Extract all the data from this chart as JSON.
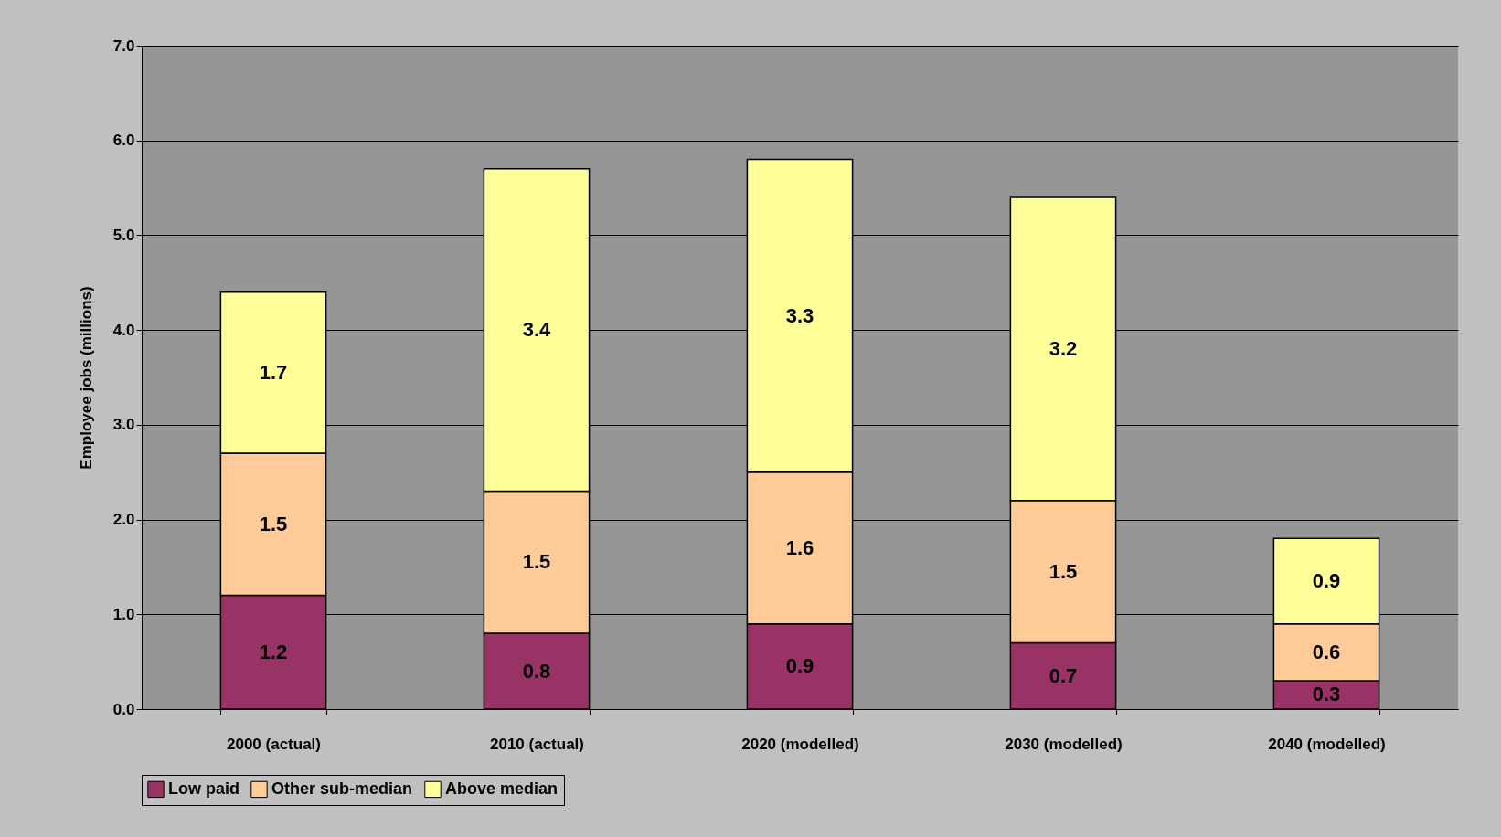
{
  "chart_data": {
    "type": "bar",
    "stacked": true,
    "ylabel": "Employee jobs (millions)",
    "categories": [
      "2000 (actual)",
      "2010 (actual)",
      "2020 (modelled)",
      "2030 (modelled)",
      "2040 (modelled)"
    ],
    "series": [
      {
        "name": "Low paid",
        "color": "#993366",
        "values": [
          1.2,
          0.8,
          0.9,
          0.7,
          0.3
        ]
      },
      {
        "name": "Other sub-median",
        "color": "#ffcc99",
        "values": [
          1.5,
          1.5,
          1.6,
          1.5,
          0.6
        ]
      },
      {
        "name": "Above median",
        "color": "#ffff99",
        "values": [
          1.7,
          3.4,
          3.3,
          3.2,
          0.9
        ]
      }
    ],
    "ylim": [
      0,
      7
    ],
    "yticks": [
      {
        "value": 0,
        "label": "0.0"
      },
      {
        "value": 1,
        "label": "1.0"
      },
      {
        "value": 2,
        "label": "2.0"
      },
      {
        "value": 3,
        "label": "3.0"
      },
      {
        "value": 4,
        "label": "4.0"
      },
      {
        "value": 5,
        "label": "5.0"
      },
      {
        "value": 6,
        "label": "6.0"
      },
      {
        "value": 7,
        "label": "7.0"
      }
    ],
    "grid": "y",
    "legend": "bottom",
    "data_labels": true
  }
}
